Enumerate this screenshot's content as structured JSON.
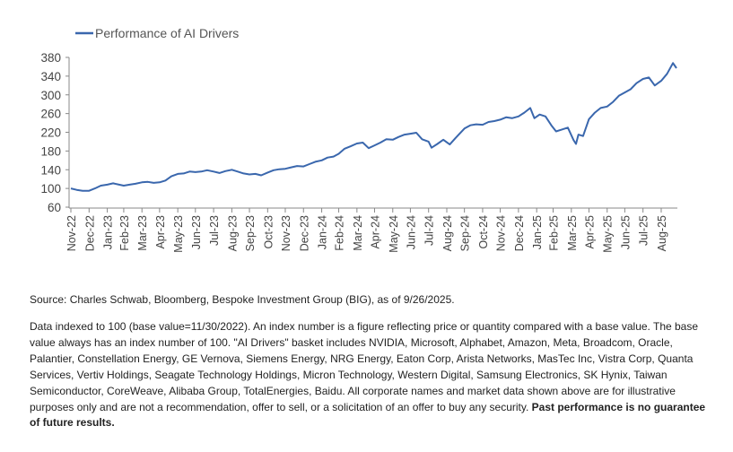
{
  "chart_data": {
    "type": "line",
    "title": "",
    "xlabel": "",
    "ylabel": "",
    "ylim": [
      60,
      380
    ],
    "yticks": [
      60,
      100,
      140,
      180,
      220,
      260,
      300,
      340,
      380
    ],
    "grid": false,
    "legend_position": "top-left",
    "series": [
      {
        "name": "Performance of AI Drivers",
        "color": "#3a67ad",
        "points": [
          [
            "2022-11-30",
            100
          ],
          [
            "2022-12-10",
            97
          ],
          [
            "2022-12-20",
            95
          ],
          [
            "2022-12-31",
            95
          ],
          [
            "2023-01-10",
            100
          ],
          [
            "2023-01-20",
            106
          ],
          [
            "2023-01-31",
            108
          ],
          [
            "2023-02-10",
            111
          ],
          [
            "2023-02-20",
            108
          ],
          [
            "2023-02-28",
            106
          ],
          [
            "2023-03-10",
            108
          ],
          [
            "2023-03-20",
            110
          ],
          [
            "2023-03-31",
            113
          ],
          [
            "2023-04-10",
            114
          ],
          [
            "2023-04-20",
            112
          ],
          [
            "2023-04-30",
            113
          ],
          [
            "2023-05-10",
            117
          ],
          [
            "2023-05-20",
            126
          ],
          [
            "2023-05-31",
            131
          ],
          [
            "2023-06-10",
            132
          ],
          [
            "2023-06-20",
            136
          ],
          [
            "2023-06-30",
            135
          ],
          [
            "2023-07-10",
            136
          ],
          [
            "2023-07-20",
            139
          ],
          [
            "2023-07-31",
            136
          ],
          [
            "2023-08-10",
            133
          ],
          [
            "2023-08-20",
            137
          ],
          [
            "2023-08-31",
            140
          ],
          [
            "2023-09-10",
            136
          ],
          [
            "2023-09-20",
            132
          ],
          [
            "2023-09-30",
            130
          ],
          [
            "2023-10-10",
            131
          ],
          [
            "2023-10-20",
            128
          ],
          [
            "2023-10-31",
            134
          ],
          [
            "2023-11-10",
            139
          ],
          [
            "2023-11-20",
            141
          ],
          [
            "2023-11-30",
            142
          ],
          [
            "2023-12-10",
            145
          ],
          [
            "2023-12-20",
            148
          ],
          [
            "2023-12-31",
            147
          ],
          [
            "2024-01-10",
            152
          ],
          [
            "2024-01-20",
            157
          ],
          [
            "2024-01-31",
            160
          ],
          [
            "2024-02-10",
            166
          ],
          [
            "2024-02-20",
            168
          ],
          [
            "2024-02-29",
            174
          ],
          [
            "2024-03-10",
            185
          ],
          [
            "2024-03-20",
            190
          ],
          [
            "2024-03-31",
            196
          ],
          [
            "2024-04-10",
            198
          ],
          [
            "2024-04-20",
            186
          ],
          [
            "2024-04-30",
            192
          ],
          [
            "2024-05-10",
            198
          ],
          [
            "2024-05-20",
            205
          ],
          [
            "2024-05-31",
            204
          ],
          [
            "2024-06-10",
            210
          ],
          [
            "2024-06-20",
            215
          ],
          [
            "2024-06-30",
            217
          ],
          [
            "2024-07-10",
            219
          ],
          [
            "2024-07-20",
            205
          ],
          [
            "2024-07-31",
            200
          ],
          [
            "2024-08-05",
            187
          ],
          [
            "2024-08-15",
            195
          ],
          [
            "2024-08-25",
            204
          ],
          [
            "2024-09-05",
            194
          ],
          [
            "2024-09-15",
            208
          ],
          [
            "2024-09-30",
            228
          ],
          [
            "2024-10-10",
            235
          ],
          [
            "2024-10-20",
            237
          ],
          [
            "2024-10-31",
            236
          ],
          [
            "2024-11-10",
            242
          ],
          [
            "2024-11-20",
            244
          ],
          [
            "2024-11-30",
            247
          ],
          [
            "2024-12-10",
            252
          ],
          [
            "2024-12-20",
            250
          ],
          [
            "2024-12-31",
            254
          ],
          [
            "2025-01-10",
            262
          ],
          [
            "2025-01-20",
            272
          ],
          [
            "2025-01-27",
            250
          ],
          [
            "2025-02-05",
            258
          ],
          [
            "2025-02-15",
            254
          ],
          [
            "2025-02-25",
            235
          ],
          [
            "2025-03-05",
            222
          ],
          [
            "2025-03-15",
            226
          ],
          [
            "2025-03-25",
            230
          ],
          [
            "2025-04-04",
            203
          ],
          [
            "2025-04-08",
            195
          ],
          [
            "2025-04-12",
            215
          ],
          [
            "2025-04-20",
            212
          ],
          [
            "2025-04-30",
            248
          ],
          [
            "2025-05-10",
            262
          ],
          [
            "2025-05-20",
            272
          ],
          [
            "2025-05-31",
            275
          ],
          [
            "2025-06-10",
            285
          ],
          [
            "2025-06-20",
            298
          ],
          [
            "2025-06-30",
            305
          ],
          [
            "2025-07-10",
            312
          ],
          [
            "2025-07-20",
            325
          ],
          [
            "2025-07-31",
            334
          ],
          [
            "2025-08-10",
            337
          ],
          [
            "2025-08-20",
            320
          ],
          [
            "2025-08-31",
            330
          ],
          [
            "2025-09-10",
            345
          ],
          [
            "2025-09-20",
            368
          ],
          [
            "2025-09-26",
            357
          ]
        ]
      }
    ],
    "x_start": "2022-11-30",
    "x_end": "2025-09-26",
    "x_tick_labels": [
      {
        "date": "2022-11-30",
        "label": "Nov-22"
      },
      {
        "date": "2022-12-31",
        "label": "Dec-22"
      },
      {
        "date": "2023-01-31",
        "label": "Jan-23"
      },
      {
        "date": "2023-02-28",
        "label": "Feb-23"
      },
      {
        "date": "2023-03-31",
        "label": "Mar-23"
      },
      {
        "date": "2023-04-30",
        "label": "Apr-23"
      },
      {
        "date": "2023-05-31",
        "label": "May-23"
      },
      {
        "date": "2023-06-30",
        "label": "Jun-23"
      },
      {
        "date": "2023-07-31",
        "label": "Jul-23"
      },
      {
        "date": "2023-08-31",
        "label": "Aug-23"
      },
      {
        "date": "2023-09-30",
        "label": "Sep-23"
      },
      {
        "date": "2023-10-31",
        "label": "Oct-23"
      },
      {
        "date": "2023-11-30",
        "label": "Nov-23"
      },
      {
        "date": "2023-12-31",
        "label": "Dec-23"
      },
      {
        "date": "2024-01-31",
        "label": "Jan-24"
      },
      {
        "date": "2024-02-29",
        "label": "Feb-24"
      },
      {
        "date": "2024-03-31",
        "label": "Mar-24"
      },
      {
        "date": "2024-04-30",
        "label": "Apr-24"
      },
      {
        "date": "2024-05-31",
        "label": "May-24"
      },
      {
        "date": "2024-06-30",
        "label": "Jun-24"
      },
      {
        "date": "2024-07-31",
        "label": "Jul-24"
      },
      {
        "date": "2024-08-31",
        "label": "Aug-24"
      },
      {
        "date": "2024-09-30",
        "label": "Sep-24"
      },
      {
        "date": "2024-10-31",
        "label": "Oct-24"
      },
      {
        "date": "2024-11-30",
        "label": "Nov-24"
      },
      {
        "date": "2024-12-31",
        "label": "Dec-24"
      },
      {
        "date": "2025-01-31",
        "label": "Jan-25"
      },
      {
        "date": "2025-02-28",
        "label": "Feb-25"
      },
      {
        "date": "2025-03-31",
        "label": "Mar-25"
      },
      {
        "date": "2025-04-30",
        "label": "Apr-25"
      },
      {
        "date": "2025-05-31",
        "label": "May-25"
      },
      {
        "date": "2025-06-30",
        "label": "Jun-25"
      },
      {
        "date": "2025-07-31",
        "label": "Jul-25"
      },
      {
        "date": "2025-08-31",
        "label": "Aug-25"
      }
    ]
  },
  "notes": {
    "source": "Source: Charles Schwab, Bloomberg, Bespoke Investment Group (BIG), as of 9/26/2025.",
    "disclaimer": "Data indexed to 100 (base value=11/30/2022). An index number is a figure reflecting price or quantity compared with a base value. The base value always has an index number of 100.  \"AI Drivers\" basket includes NVIDIA, Microsoft, Alphabet, Amazon, Meta, Broadcom, Oracle, Palantier, Constellation Energy, GE Vernova, Siemens Energy, NRG Energy, Eaton Corp, Arista Networks, MasTec Inc, Vistra Corp, Quanta Services, Vertiv Holdings, Seagate Technology Holdings, Micron Technology, Western Digital, Samsung Electronics, SK Hynix, Taiwan Semiconductor, CoreWeave, Alibaba Group, TotalEnergies, Baidu. All corporate names and market data shown above are for illustrative purposes only and are not a recommendation, offer to sell, or a solicitation of an offer to buy any security.",
    "disclaimer_bold": "Past performance is no guarantee of future results."
  }
}
